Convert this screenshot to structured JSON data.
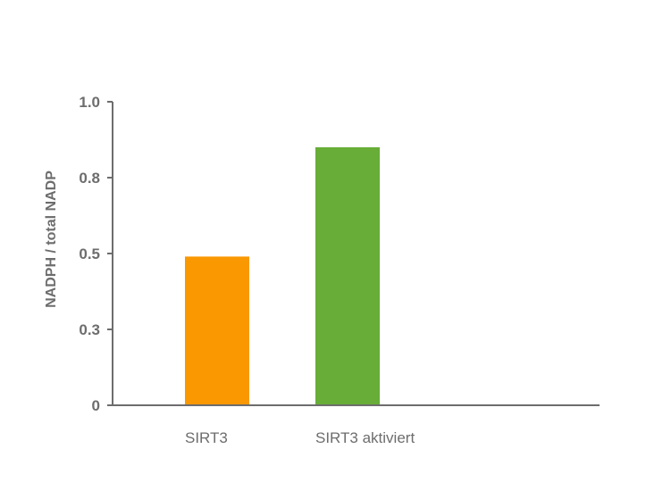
{
  "chart_data": {
    "type": "bar",
    "categories": [
      "SIRT3",
      "SIRT3 aktiviert"
    ],
    "values": [
      0.49,
      0.85
    ],
    "ylabel": "NADPH / total NADP",
    "xlabel": "",
    "ylim": [
      0,
      1.0
    ],
    "y_tick_values": [
      0,
      0.25,
      0.5,
      0.75,
      1.0
    ],
    "y_tick_labels": [
      "0",
      "0.3",
      "0.5",
      "0.8",
      "1.0"
    ],
    "bar_colors": [
      "#f99800",
      "#67ad37"
    ],
    "axis_color": "#6d6d6d",
    "grid": false,
    "legend": "none"
  }
}
